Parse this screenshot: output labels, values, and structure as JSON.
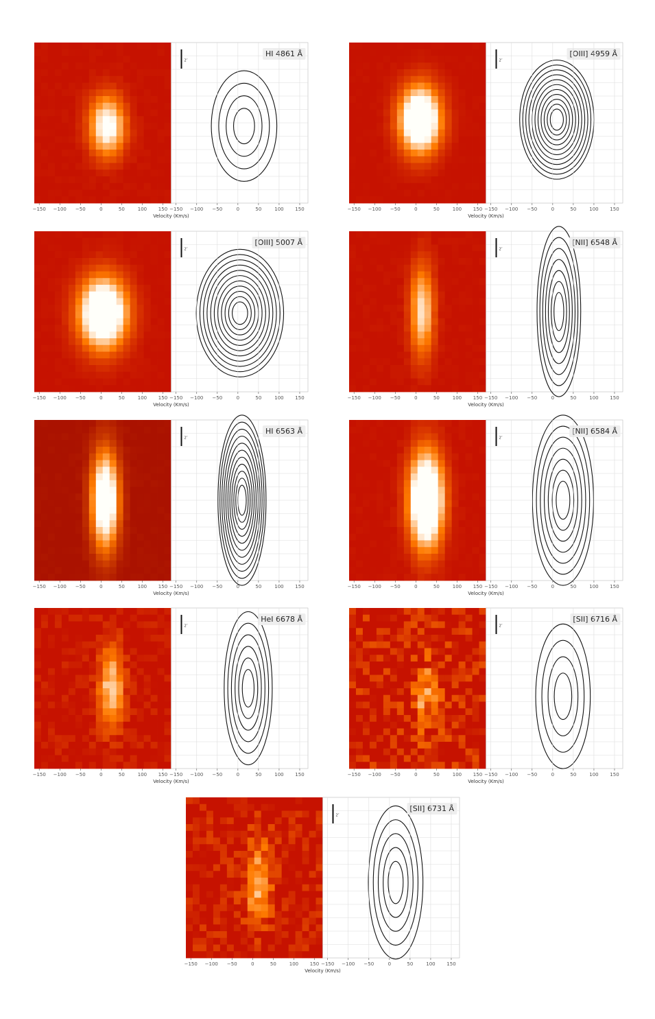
{
  "chart_data": [
    {
      "type": "image-contour",
      "title": "HI 4861 Å",
      "scale_label": "2″",
      "xlabel": "Velocity (Km/s)",
      "xlim": [
        -162,
        170
      ],
      "xticks": [
        {
          "value": -150,
          "label": "−150"
        },
        {
          "value": -100,
          "label": "−100"
        },
        {
          "value": -50,
          "label": "−50"
        },
        0,
        50,
        100,
        150
      ]
    },
    {
      "type": "image-contour",
      "title": "[OIII] 4959 Å",
      "scale_label": "2″",
      "xlabel": "Velocity (Km/s)",
      "xlim": [
        -162,
        170
      ],
      "xticks": [
        {
          "value": -150,
          "label": "−150"
        },
        {
          "value": -100,
          "label": "−100"
        },
        {
          "value": -50,
          "label": "−50"
        },
        0,
        50,
        100,
        150
      ]
    },
    {
      "type": "image-contour",
      "title": "[OIII] 5007 Å",
      "scale_label": "2″",
      "xlabel": "Velocity (Km/s)",
      "xlim": [
        -162,
        170
      ],
      "xticks": [
        {
          "value": -150,
          "label": "−150"
        },
        {
          "value": -100,
          "label": "−100"
        },
        {
          "value": -50,
          "label": "−50"
        },
        0,
        50,
        100,
        150
      ]
    },
    {
      "type": "image-contour",
      "title": "[NII] 6548 Å",
      "scale_label": "2″",
      "xlabel": "Velocity (Km/s)",
      "xlim": [
        -162,
        170
      ],
      "xticks": [
        {
          "value": -150,
          "label": "−150"
        },
        {
          "value": -100,
          "label": "−100"
        },
        {
          "value": -50,
          "label": "−50"
        },
        0,
        50,
        100,
        150
      ]
    },
    {
      "type": "image-contour",
      "title": "HI 6563 Å",
      "scale_label": "2″",
      "xlabel": "Velocity (Km/s)",
      "xlim": [
        -162,
        170
      ],
      "xticks": [
        {
          "value": -150,
          "label": "−150"
        },
        {
          "value": -100,
          "label": "−100"
        },
        {
          "value": -50,
          "label": "−50"
        },
        0,
        50,
        100,
        150
      ]
    },
    {
      "type": "image-contour",
      "title": "[NII] 6584 Å",
      "scale_label": "2″",
      "xlabel": "Velocity (Km/s)",
      "xlim": [
        -162,
        170
      ],
      "xticks": [
        {
          "value": -150,
          "label": "−150"
        },
        {
          "value": -100,
          "label": "−100"
        },
        {
          "value": -50,
          "label": "−50"
        },
        0,
        50,
        100,
        150
      ]
    },
    {
      "type": "image-contour",
      "title": "HeI 6678 Å",
      "scale_label": "2″",
      "xlabel": "Velocity (Km/s)",
      "xlim": [
        -162,
        170
      ],
      "xticks": [
        {
          "value": -150,
          "label": "−150"
        },
        {
          "value": -100,
          "label": "−100"
        },
        {
          "value": -50,
          "label": "−50"
        },
        0,
        50,
        100,
        150
      ]
    },
    {
      "type": "image-contour",
      "title": "[SII] 6716 Å",
      "scale_label": "2″",
      "xlabel": "Velocity (Km/s)",
      "xlim": [
        -162,
        170
      ],
      "xticks": [
        {
          "value": -150,
          "label": "−150"
        },
        {
          "value": -100,
          "label": "−100"
        },
        {
          "value": -50,
          "label": "−50"
        },
        0,
        50,
        100,
        150
      ]
    },
    {
      "type": "image-contour",
      "title": "[SII] 6731 Å",
      "scale_label": "2″",
      "xlabel": "Velocity (Km/s)",
      "xlim": [
        -162,
        170
      ],
      "xticks": [
        {
          "value": -150,
          "label": "−150"
        },
        {
          "value": -100,
          "label": "−100"
        },
        {
          "value": -50,
          "label": "−50"
        },
        0,
        50,
        100,
        150
      ]
    }
  ]
}
